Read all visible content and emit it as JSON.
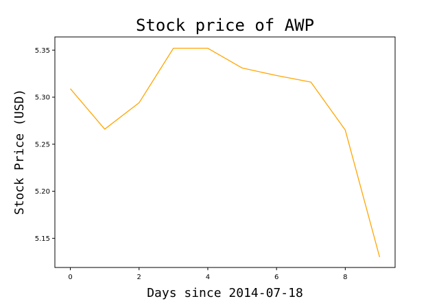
{
  "chart_data": {
    "type": "line",
    "title": "Stock price of AWP",
    "xlabel": "Days since 2014-07-18",
    "ylabel": "Stock Price (USD)",
    "xlim": [
      -0.45,
      9.45
    ],
    "ylim": [
      5.119,
      5.364
    ],
    "xticks": [
      0,
      2,
      4,
      6,
      8
    ],
    "yticks": [
      5.15,
      5.2,
      5.25,
      5.3,
      5.35
    ],
    "grid": false,
    "series": [
      {
        "color": "#ffa500",
        "x": [
          0,
          1,
          2,
          3,
          4,
          5,
          6,
          7,
          8,
          9
        ],
        "y": [
          5.309,
          5.266,
          5.294,
          5.352,
          5.352,
          5.331,
          5.323,
          5.316,
          5.265,
          5.13
        ]
      }
    ]
  }
}
